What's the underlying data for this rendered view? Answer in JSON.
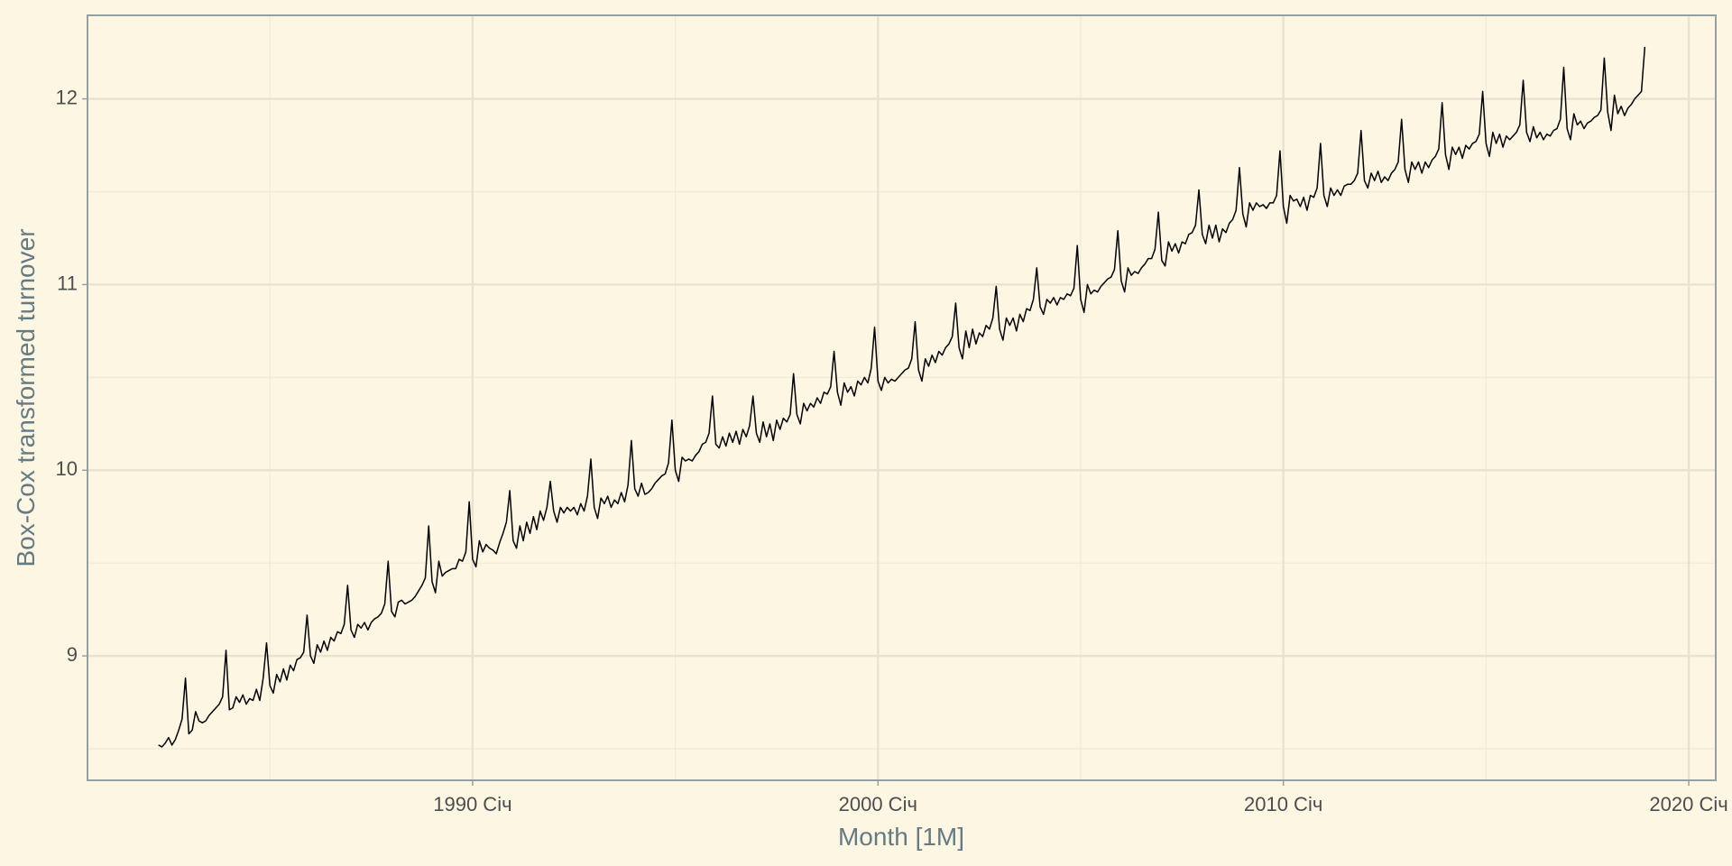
{
  "chart_data": {
    "type": "line",
    "x_label": "Month [1M]",
    "y_label": "Box-Cox transformed turnover",
    "color": "#000000",
    "grid": true,
    "xlim": [
      "1980-07",
      "2020-09"
    ],
    "xticks": [
      {
        "value": "1990-01",
        "label": "1990 Січ"
      },
      {
        "value": "2000-01",
        "label": "2000 Січ"
      },
      {
        "value": "2010-01",
        "label": "2010 Січ"
      },
      {
        "value": "2020-01",
        "label": "2020 Січ"
      }
    ],
    "xminorticks": [
      "1985-01",
      "1995-01",
      "2005-01",
      "2015-01"
    ],
    "ylim": [
      8.33,
      12.45
    ],
    "yticks": [
      9,
      10,
      11,
      12
    ],
    "yminorticks": [
      8.5,
      9.5,
      10.5,
      11.5
    ],
    "x": [
      "1982-04",
      "1982-05",
      "1982-06",
      "1982-07",
      "1982-08",
      "1982-09",
      "1982-10",
      "1982-11",
      "1982-12",
      "1983-01",
      "1983-02",
      "1983-03",
      "1983-04",
      "1983-05",
      "1983-06",
      "1983-07",
      "1983-08",
      "1983-09",
      "1983-10",
      "1983-11",
      "1983-12",
      "1984-01",
      "1984-02",
      "1984-03",
      "1984-04",
      "1984-05",
      "1984-06",
      "1984-07",
      "1984-08",
      "1984-09",
      "1984-10",
      "1984-11",
      "1984-12",
      "1985-01",
      "1985-02",
      "1985-03",
      "1985-04",
      "1985-05",
      "1985-06",
      "1985-07",
      "1985-08",
      "1985-09",
      "1985-10",
      "1985-11",
      "1985-12",
      "1986-01",
      "1986-02",
      "1986-03",
      "1986-04",
      "1986-05",
      "1986-06",
      "1986-07",
      "1986-08",
      "1986-09",
      "1986-10",
      "1986-11",
      "1986-12",
      "1987-01",
      "1987-02",
      "1987-03",
      "1987-04",
      "1987-05",
      "1987-06",
      "1987-07",
      "1987-08",
      "1987-09",
      "1987-10",
      "1987-11",
      "1987-12",
      "1988-01",
      "1988-02",
      "1988-03",
      "1988-04",
      "1988-05",
      "1988-06",
      "1988-07",
      "1988-08",
      "1988-09",
      "1988-10",
      "1988-11",
      "1988-12",
      "1989-01",
      "1989-02",
      "1989-03",
      "1989-04",
      "1989-05",
      "1989-06",
      "1989-07",
      "1989-08",
      "1989-09",
      "1989-10",
      "1989-11",
      "1989-12",
      "1990-01",
      "1990-02",
      "1990-03",
      "1990-04",
      "1990-05",
      "1990-06",
      "1990-07",
      "1990-08",
      "1990-09",
      "1990-10",
      "1990-11",
      "1990-12",
      "1991-01",
      "1991-02",
      "1991-03",
      "1991-04",
      "1991-05",
      "1991-06",
      "1991-07",
      "1991-08",
      "1991-09",
      "1991-10",
      "1991-11",
      "1991-12",
      "1992-01",
      "1992-02",
      "1992-03",
      "1992-04",
      "1992-05",
      "1992-06",
      "1992-07",
      "1992-08",
      "1992-09",
      "1992-10",
      "1992-11",
      "1992-12",
      "1993-01",
      "1993-02",
      "1993-03",
      "1993-04",
      "1993-05",
      "1993-06",
      "1993-07",
      "1993-08",
      "1993-09",
      "1993-10",
      "1993-11",
      "1993-12",
      "1994-01",
      "1994-02",
      "1994-03",
      "1994-04",
      "1994-05",
      "1994-06",
      "1994-07",
      "1994-08",
      "1994-09",
      "1994-10",
      "1994-11",
      "1994-12",
      "1995-01",
      "1995-02",
      "1995-03",
      "1995-04",
      "1995-05",
      "1995-06",
      "1995-07",
      "1995-08",
      "1995-09",
      "1995-10",
      "1995-11",
      "1995-12",
      "1996-01",
      "1996-02",
      "1996-03",
      "1996-04",
      "1996-05",
      "1996-06",
      "1996-07",
      "1996-08",
      "1996-09",
      "1996-10",
      "1996-11",
      "1996-12",
      "1997-01",
      "1997-02",
      "1997-03",
      "1997-04",
      "1997-05",
      "1997-06",
      "1997-07",
      "1997-08",
      "1997-09",
      "1997-10",
      "1997-11",
      "1997-12",
      "1998-01",
      "1998-02",
      "1998-03",
      "1998-04",
      "1998-05",
      "1998-06",
      "1998-07",
      "1998-08",
      "1998-09",
      "1998-10",
      "1998-11",
      "1998-12",
      "1999-01",
      "1999-02",
      "1999-03",
      "1999-04",
      "1999-05",
      "1999-06",
      "1999-07",
      "1999-08",
      "1999-09",
      "1999-10",
      "1999-11",
      "1999-12",
      "2000-01",
      "2000-02",
      "2000-03",
      "2000-04",
      "2000-05",
      "2000-06",
      "2000-07",
      "2000-08",
      "2000-09",
      "2000-10",
      "2000-11",
      "2000-12",
      "2001-01",
      "2001-02",
      "2001-03",
      "2001-04",
      "2001-05",
      "2001-06",
      "2001-07",
      "2001-08",
      "2001-09",
      "2001-10",
      "2001-11",
      "2001-12",
      "2002-01",
      "2002-02",
      "2002-03",
      "2002-04",
      "2002-05",
      "2002-06",
      "2002-07",
      "2002-08",
      "2002-09",
      "2002-10",
      "2002-11",
      "2002-12",
      "2003-01",
      "2003-02",
      "2003-03",
      "2003-04",
      "2003-05",
      "2003-06",
      "2003-07",
      "2003-08",
      "2003-09",
      "2003-10",
      "2003-11",
      "2003-12",
      "2004-01",
      "2004-02",
      "2004-03",
      "2004-04",
      "2004-05",
      "2004-06",
      "2004-07",
      "2004-08",
      "2004-09",
      "2004-10",
      "2004-11",
      "2004-12",
      "2005-01",
      "2005-02",
      "2005-03",
      "2005-04",
      "2005-05",
      "2005-06",
      "2005-07",
      "2005-08",
      "2005-09",
      "2005-10",
      "2005-11",
      "2005-12",
      "2006-01",
      "2006-02",
      "2006-03",
      "2006-04",
      "2006-05",
      "2006-06",
      "2006-07",
      "2006-08",
      "2006-09",
      "2006-10",
      "2006-11",
      "2006-12",
      "2007-01",
      "2007-02",
      "2007-03",
      "2007-04",
      "2007-05",
      "2007-06",
      "2007-07",
      "2007-08",
      "2007-09",
      "2007-10",
      "2007-11",
      "2007-12",
      "2008-01",
      "2008-02",
      "2008-03",
      "2008-04",
      "2008-05",
      "2008-06",
      "2008-07",
      "2008-08",
      "2008-09",
      "2008-10",
      "2008-11",
      "2008-12",
      "2009-01",
      "2009-02",
      "2009-03",
      "2009-04",
      "2009-05",
      "2009-06",
      "2009-07",
      "2009-08",
      "2009-09",
      "2009-10",
      "2009-11",
      "2009-12",
      "2010-01",
      "2010-02",
      "2010-03",
      "2010-04",
      "2010-05",
      "2010-06",
      "2010-07",
      "2010-08",
      "2010-09",
      "2010-10",
      "2010-11",
      "2010-12",
      "2011-01",
      "2011-02",
      "2011-03",
      "2011-04",
      "2011-05",
      "2011-06",
      "2011-07",
      "2011-08",
      "2011-09",
      "2011-10",
      "2011-11",
      "2011-12",
      "2012-01",
      "2012-02",
      "2012-03",
      "2012-04",
      "2012-05",
      "2012-06",
      "2012-07",
      "2012-08",
      "2012-09",
      "2012-10",
      "2012-11",
      "2012-12",
      "2013-01",
      "2013-02",
      "2013-03",
      "2013-04",
      "2013-05",
      "2013-06",
      "2013-07",
      "2013-08",
      "2013-09",
      "2013-10",
      "2013-11",
      "2013-12",
      "2014-01",
      "2014-02",
      "2014-03",
      "2014-04",
      "2014-05",
      "2014-06",
      "2014-07",
      "2014-08",
      "2014-09",
      "2014-10",
      "2014-11",
      "2014-12",
      "2015-01",
      "2015-02",
      "2015-03",
      "2015-04",
      "2015-05",
      "2015-06",
      "2015-07",
      "2015-08",
      "2015-09",
      "2015-10",
      "2015-11",
      "2015-12",
      "2016-01",
      "2016-02",
      "2016-03",
      "2016-04",
      "2016-05",
      "2016-06",
      "2016-07",
      "2016-08",
      "2016-09",
      "2016-10",
      "2016-11",
      "2016-12",
      "2017-01",
      "2017-02",
      "2017-03",
      "2017-04",
      "2017-05",
      "2017-06",
      "2017-07",
      "2017-08",
      "2017-09",
      "2017-10",
      "2017-11",
      "2017-12",
      "2018-01",
      "2018-02",
      "2018-03",
      "2018-04",
      "2018-05",
      "2018-06",
      "2018-07",
      "2018-08",
      "2018-09",
      "2018-10",
      "2018-11",
      "2018-12"
    ],
    "values": [
      8.52,
      8.51,
      8.53,
      8.56,
      8.52,
      8.55,
      8.6,
      8.66,
      8.88,
      8.58,
      8.6,
      8.7,
      8.65,
      8.64,
      8.65,
      8.68,
      8.7,
      8.72,
      8.74,
      8.78,
      9.03,
      8.71,
      8.72,
      8.78,
      8.75,
      8.79,
      8.74,
      8.77,
      8.76,
      8.82,
      8.76,
      8.88,
      9.07,
      8.84,
      8.8,
      8.9,
      8.86,
      8.93,
      8.87,
      8.95,
      8.92,
      8.98,
      8.99,
      9.02,
      9.22,
      9.0,
      8.96,
      9.06,
      9.02,
      9.08,
      9.03,
      9.1,
      9.08,
      9.13,
      9.12,
      9.17,
      9.38,
      9.14,
      9.1,
      9.17,
      9.15,
      9.18,
      9.14,
      9.18,
      9.2,
      9.21,
      9.23,
      9.28,
      9.51,
      9.24,
      9.21,
      9.29,
      9.3,
      9.28,
      9.29,
      9.3,
      9.32,
      9.35,
      9.38,
      9.42,
      9.7,
      9.4,
      9.34,
      9.51,
      9.43,
      9.45,
      9.46,
      9.47,
      9.47,
      9.52,
      9.51,
      9.56,
      9.83,
      9.52,
      9.48,
      9.62,
      9.56,
      9.6,
      9.58,
      9.57,
      9.55,
      9.61,
      9.66,
      9.72,
      9.89,
      9.62,
      9.58,
      9.7,
      9.62,
      9.72,
      9.66,
      9.75,
      9.68,
      9.78,
      9.73,
      9.8,
      9.94,
      9.78,
      9.72,
      9.8,
      9.77,
      9.8,
      9.78,
      9.8,
      9.76,
      9.82,
      9.78,
      9.86,
      10.06,
      9.8,
      9.74,
      9.85,
      9.82,
      9.86,
      9.8,
      9.84,
      9.82,
      9.88,
      9.83,
      9.92,
      10.16,
      9.9,
      9.86,
      9.93,
      9.87,
      9.88,
      9.9,
      9.93,
      9.95,
      9.97,
      9.98,
      10.04,
      10.27,
      10.0,
      9.94,
      10.07,
      10.05,
      10.06,
      10.05,
      10.08,
      10.1,
      10.14,
      10.15,
      10.2,
      10.4,
      10.14,
      10.12,
      10.18,
      10.13,
      10.2,
      10.15,
      10.21,
      10.14,
      10.22,
      10.18,
      10.24,
      10.4,
      10.2,
      10.15,
      10.26,
      10.18,
      10.25,
      10.16,
      10.27,
      10.22,
      10.28,
      10.26,
      10.3,
      10.52,
      10.3,
      10.25,
      10.36,
      10.32,
      10.36,
      10.34,
      10.39,
      10.36,
      10.42,
      10.41,
      10.45,
      10.64,
      10.42,
      10.35,
      10.47,
      10.42,
      10.45,
      10.4,
      10.48,
      10.46,
      10.5,
      10.47,
      10.55,
      10.77,
      10.48,
      10.43,
      10.5,
      10.47,
      10.49,
      10.48,
      10.5,
      10.52,
      10.54,
      10.55,
      10.6,
      10.8,
      10.54,
      10.48,
      10.6,
      10.56,
      10.62,
      10.58,
      10.64,
      10.62,
      10.66,
      10.68,
      10.72,
      10.9,
      10.66,
      10.6,
      10.75,
      10.66,
      10.76,
      10.68,
      10.74,
      10.72,
      10.78,
      10.76,
      10.82,
      10.99,
      10.76,
      10.7,
      10.82,
      10.78,
      10.82,
      10.75,
      10.84,
      10.8,
      10.87,
      10.86,
      10.92,
      11.09,
      10.88,
      10.84,
      10.92,
      10.9,
      10.93,
      10.89,
      10.93,
      10.92,
      10.95,
      10.94,
      10.98,
      11.21,
      10.92,
      10.85,
      11.0,
      10.95,
      10.97,
      10.96,
      10.99,
      11.01,
      11.03,
      11.04,
      11.08,
      11.29,
      11.02,
      10.96,
      11.09,
      11.05,
      11.07,
      11.06,
      11.09,
      11.11,
      11.14,
      11.14,
      11.19,
      11.39,
      11.13,
      11.1,
      11.23,
      11.18,
      11.22,
      11.17,
      11.23,
      11.22,
      11.27,
      11.28,
      11.32,
      11.51,
      11.27,
      11.22,
      11.32,
      11.25,
      11.32,
      11.23,
      11.3,
      11.28,
      11.33,
      11.35,
      11.4,
      11.63,
      11.38,
      11.31,
      11.44,
      11.4,
      11.44,
      11.42,
      11.43,
      11.41,
      11.44,
      11.44,
      11.48,
      11.72,
      11.42,
      11.33,
      11.48,
      11.45,
      11.46,
      11.42,
      11.47,
      11.4,
      11.48,
      11.47,
      11.52,
      11.76,
      11.48,
      11.42,
      11.52,
      11.48,
      11.51,
      11.48,
      11.53,
      11.54,
      11.54,
      11.56,
      11.6,
      11.83,
      11.56,
      11.52,
      11.6,
      11.56,
      11.61,
      11.55,
      11.58,
      11.56,
      11.6,
      11.62,
      11.66,
      11.89,
      11.62,
      11.55,
      11.66,
      11.62,
      11.66,
      11.6,
      11.66,
      11.63,
      11.67,
      11.69,
      11.73,
      11.98,
      11.7,
      11.62,
      11.74,
      11.7,
      11.74,
      11.68,
      11.75,
      11.73,
      11.76,
      11.77,
      11.81,
      12.04,
      11.76,
      11.69,
      11.82,
      11.76,
      11.81,
      11.74,
      11.8,
      11.78,
      11.8,
      11.82,
      11.86,
      12.1,
      11.82,
      11.77,
      11.85,
      11.79,
      11.82,
      11.78,
      11.81,
      11.8,
      11.83,
      11.84,
      11.89,
      12.17,
      11.84,
      11.78,
      11.92,
      11.86,
      11.88,
      11.84,
      11.87,
      11.88,
      11.9,
      11.91,
      11.94,
      12.22,
      11.93,
      11.83,
      12.02,
      11.92,
      11.96,
      11.91,
      11.95,
      11.97,
      12.0,
      12.02,
      12.04,
      12.28
    ]
  }
}
